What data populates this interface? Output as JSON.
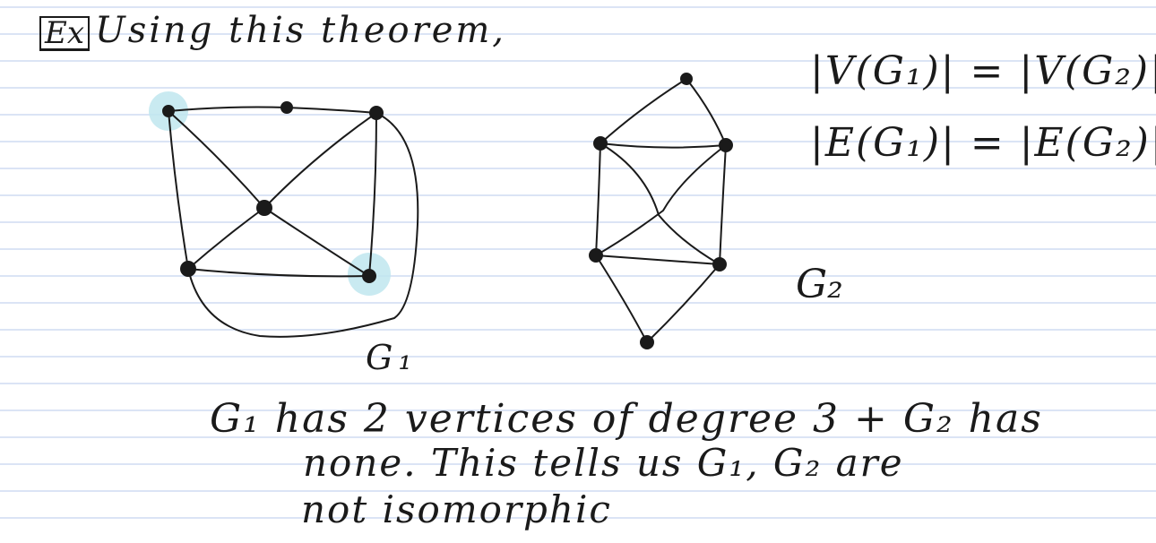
{
  "note": {
    "title_prefix": "Ex",
    "title_text": "Using this theorem,",
    "equation_vertices": "|V(G₁)| = |V(G₂)|",
    "equation_edges": "|E(G₁)| = |E(G₂)|",
    "graph1_label": "G₁",
    "graph2_label": "G₂",
    "conclusion_line1": "G₁ has 2 vertices of degree 3 + G₂ has",
    "conclusion_line2": "none. This tells us G₁, G₂ are",
    "conclusion_line3": "not isomorphic"
  },
  "colors": {
    "paper": "#ffffff",
    "rule_line": "#cfdcf2",
    "ink": "#1a1a1a",
    "highlight": "#bfe6ee"
  }
}
